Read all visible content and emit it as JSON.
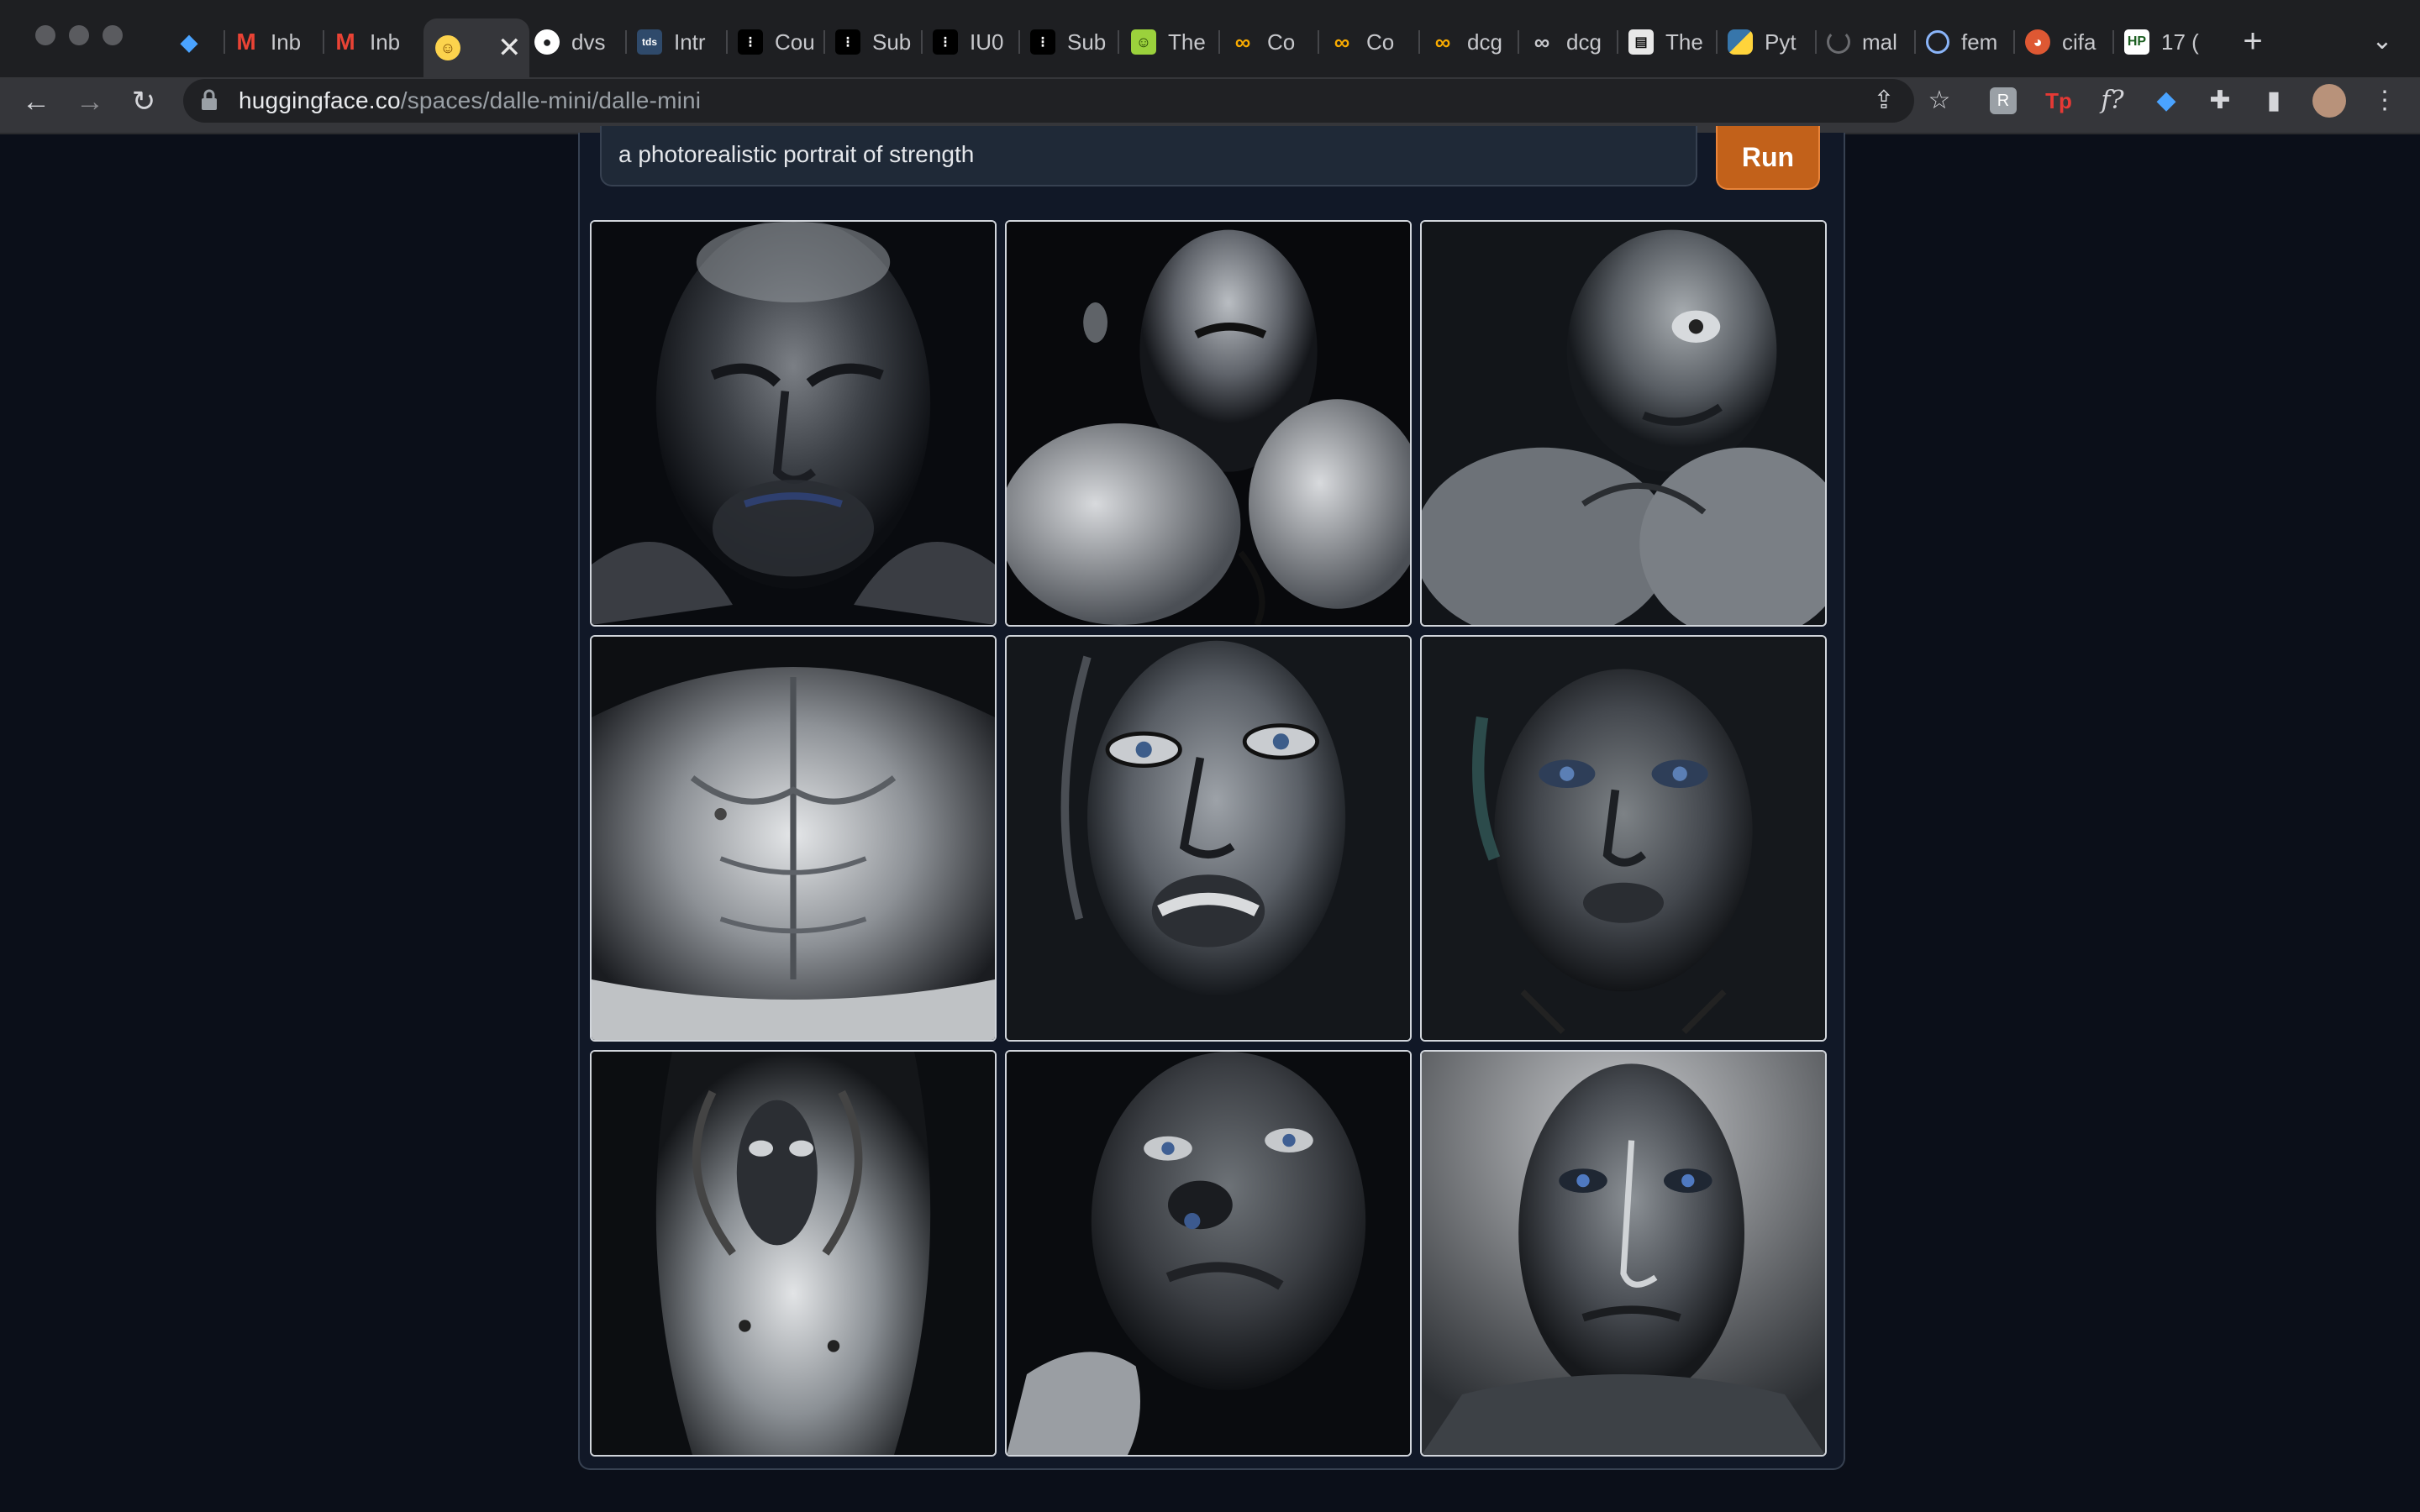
{
  "browser": {
    "tabs": [
      {
        "label": "",
        "icon": "gem-icon"
      },
      {
        "label": "Inb",
        "icon": "gmail-icon"
      },
      {
        "label": "Inb",
        "icon": "gmail-icon"
      },
      {
        "label": "",
        "icon": "hugging-face-icon",
        "active": true
      },
      {
        "label": "dvs",
        "icon": "github-icon"
      },
      {
        "label": "Intr",
        "icon": "tds-icon"
      },
      {
        "label": "Cou",
        "icon": "dots-icon"
      },
      {
        "label": "Sub",
        "icon": "dots-icon"
      },
      {
        "label": "IU0",
        "icon": "dots-icon"
      },
      {
        "label": "Sub",
        "icon": "dots-icon"
      },
      {
        "label": "The",
        "icon": "smiley-icon"
      },
      {
        "label": "Co",
        "icon": "colab-icon"
      },
      {
        "label": "Co",
        "icon": "colab-icon"
      },
      {
        "label": "dcg",
        "icon": "colab-icon"
      },
      {
        "label": "dcg",
        "icon": "link-icon"
      },
      {
        "label": "The",
        "icon": "newspaper-icon"
      },
      {
        "label": "Pyt",
        "icon": "python-icon"
      },
      {
        "label": "mal",
        "icon": "loading-icon"
      },
      {
        "label": "fem",
        "icon": "chart-icon"
      },
      {
        "label": "cifa",
        "icon": "duckduckgo-icon"
      },
      {
        "label": "17 (",
        "icon": "hp-icon"
      }
    ],
    "url_host": "huggingface.co",
    "url_path": "/spaces/dalle-mini/dalle-mini"
  },
  "app": {
    "prompt_value": "a photorealistic portrait  of strength",
    "run_label": "Run",
    "accent_color": "#c2611a"
  },
  "gallery": {
    "images": [
      "generated-image-1",
      "generated-image-2",
      "generated-image-3",
      "generated-image-4",
      "generated-image-5",
      "generated-image-6",
      "generated-image-7",
      "generated-image-8",
      "generated-image-9"
    ]
  }
}
